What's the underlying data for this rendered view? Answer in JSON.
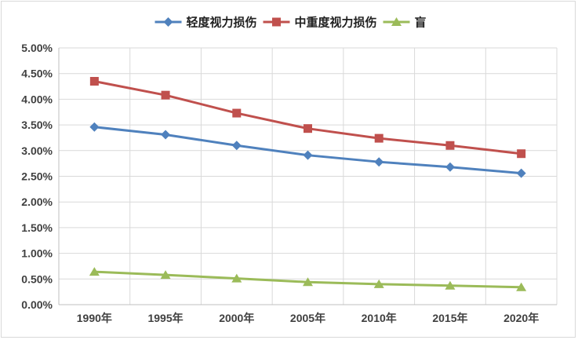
{
  "chart_data": {
    "type": "line",
    "title": "",
    "xlabel": "",
    "ylabel": "",
    "categories": [
      "1990年",
      "1995年",
      "2000年",
      "2005年",
      "2010年",
      "2015年",
      "2020年"
    ],
    "ylim": [
      0,
      5.0
    ],
    "y_tick_labels": [
      "0.00%",
      "0.50%",
      "1.00%",
      "1.50%",
      "2.00%",
      "2.50%",
      "3.00%",
      "3.50%",
      "4.00%",
      "4.50%",
      "5.00%"
    ],
    "grid": true,
    "legend_position": "top",
    "series": [
      {
        "name": "轻度视力损伤",
        "color": "#4f81bd",
        "marker": "diamond",
        "values": [
          3.46,
          3.31,
          3.1,
          2.91,
          2.78,
          2.68,
          2.56
        ]
      },
      {
        "name": "中重度视力损伤",
        "color": "#c0504d",
        "marker": "square",
        "values": [
          4.35,
          4.08,
          3.73,
          3.43,
          3.24,
          3.1,
          2.94
        ]
      },
      {
        "name": "盲",
        "color": "#9bbb59",
        "marker": "triangle",
        "values": [
          0.64,
          0.58,
          0.51,
          0.44,
          0.4,
          0.37,
          0.34
        ]
      }
    ]
  }
}
